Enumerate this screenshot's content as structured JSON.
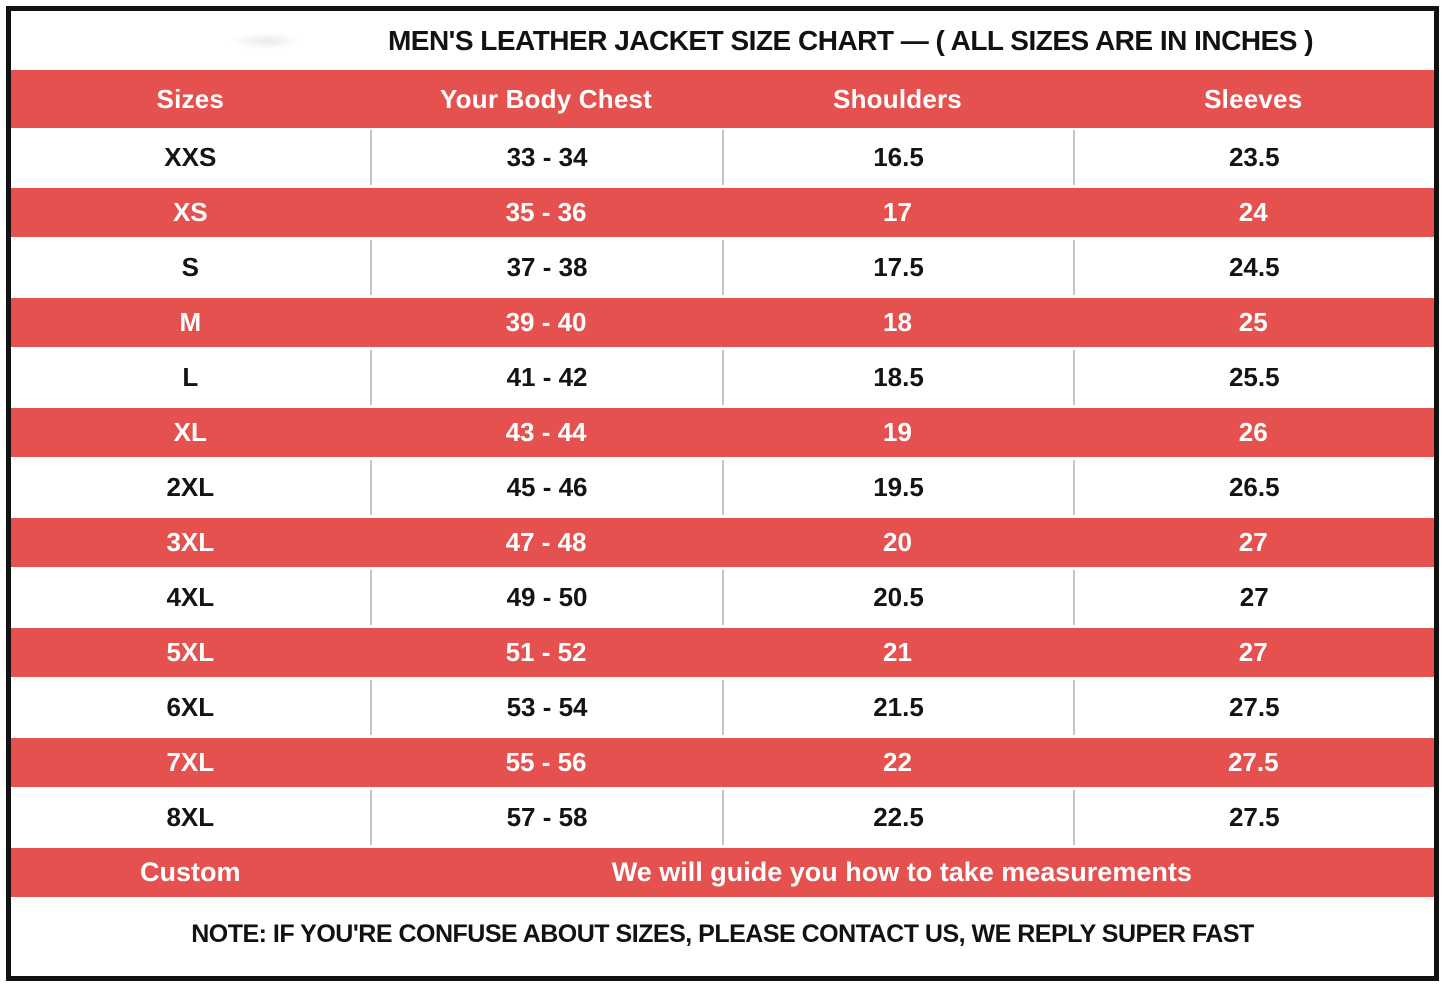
{
  "colors": {
    "accent_red": "#E5514F",
    "header_text": "#FFFFFF",
    "body_text": "#141414",
    "divider_gray": "#C6C6C6",
    "frame_black": "#121212"
  },
  "chart_data": {
    "type": "table",
    "title": "MEN'S LEATHER JACKET SIZE CHART — ( ALL SIZES ARE IN INCHES )",
    "columns": [
      "Sizes",
      "Your Body Chest",
      "Shoulders",
      "Sleeves"
    ],
    "rows": [
      {
        "size": "XXS",
        "chest": "33 - 34",
        "shoulders": "16.5",
        "sleeves": "23.5",
        "highlight": false
      },
      {
        "size": "XS",
        "chest": "35 - 36",
        "shoulders": "17",
        "sleeves": "24",
        "highlight": true
      },
      {
        "size": "S",
        "chest": "37 - 38",
        "shoulders": "17.5",
        "sleeves": "24.5",
        "highlight": false
      },
      {
        "size": "M",
        "chest": "39 - 40",
        "shoulders": "18",
        "sleeves": "25",
        "highlight": true
      },
      {
        "size": "L",
        "chest": "41 - 42",
        "shoulders": "18.5",
        "sleeves": "25.5",
        "highlight": false
      },
      {
        "size": "XL",
        "chest": "43 - 44",
        "shoulders": "19",
        "sleeves": "26",
        "highlight": true
      },
      {
        "size": "2XL",
        "chest": "45 - 46",
        "shoulders": "19.5",
        "sleeves": "26.5",
        "highlight": false
      },
      {
        "size": "3XL",
        "chest": "47 - 48",
        "shoulders": "20",
        "sleeves": "27",
        "highlight": true
      },
      {
        "size": "4XL",
        "chest": "49 - 50",
        "shoulders": "20.5",
        "sleeves": "27",
        "highlight": false
      },
      {
        "size": "5XL",
        "chest": "51 - 52",
        "shoulders": "21",
        "sleeves": "27",
        "highlight": true
      },
      {
        "size": "6XL",
        "chest": "53 - 54",
        "shoulders": "21.5",
        "sleeves": "27.5",
        "highlight": false
      },
      {
        "size": "7XL",
        "chest": "55 - 56",
        "shoulders": "22",
        "sleeves": "27.5",
        "highlight": true
      },
      {
        "size": "8XL",
        "chest": "57 - 58",
        "shoulders": "22.5",
        "sleeves": "27.5",
        "highlight": false
      }
    ],
    "custom_row": {
      "label": "Custom",
      "message": "We will guide you how to take measurements",
      "highlight": true
    },
    "note": "NOTE: IF YOU'RE CONFUSE ABOUT SIZES, PLEASE CONTACT US, WE REPLY SUPER FAST"
  }
}
